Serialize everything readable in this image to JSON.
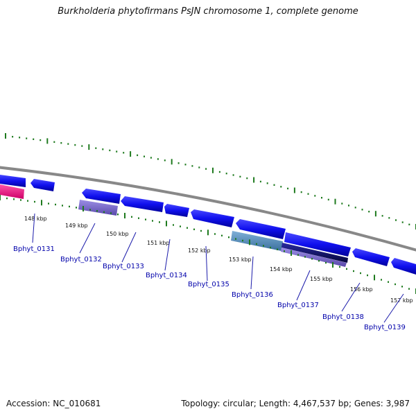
{
  "title": "Burkholderia phytofirmans PsJN chromosome 1, complete genome",
  "footer": {
    "accession": "Accession: NC_010681",
    "summary": "Topology: circular; Length: 4,467,537 bp; Genes: 3,987"
  },
  "colors": {
    "backbone": "#888888",
    "tick": "#1e7a1e",
    "gene_forward": "#1010ee",
    "gene_pink": "#ee1188",
    "gene_light_purple": "#7766cc",
    "gene_steel": "#4a86b8",
    "gene_navy": "#0a0a70",
    "label": "#0000aa"
  },
  "scale_labels": [
    "148 kbp",
    "149 kbp",
    "150 kbp",
    "151 kbp",
    "152 kbp",
    "153 kbp",
    "154 kbp",
    "155 kbp",
    "156 kbp",
    "157 kbp"
  ],
  "gene_labels": [
    "Bphyt_0131",
    "Bphyt_0132",
    "Bphyt_0133",
    "Bphyt_0134",
    "Bphyt_0135",
    "Bphyt_0136",
    "Bphyt_0137",
    "Bphyt_0138",
    "Bphyt_0139"
  ]
}
